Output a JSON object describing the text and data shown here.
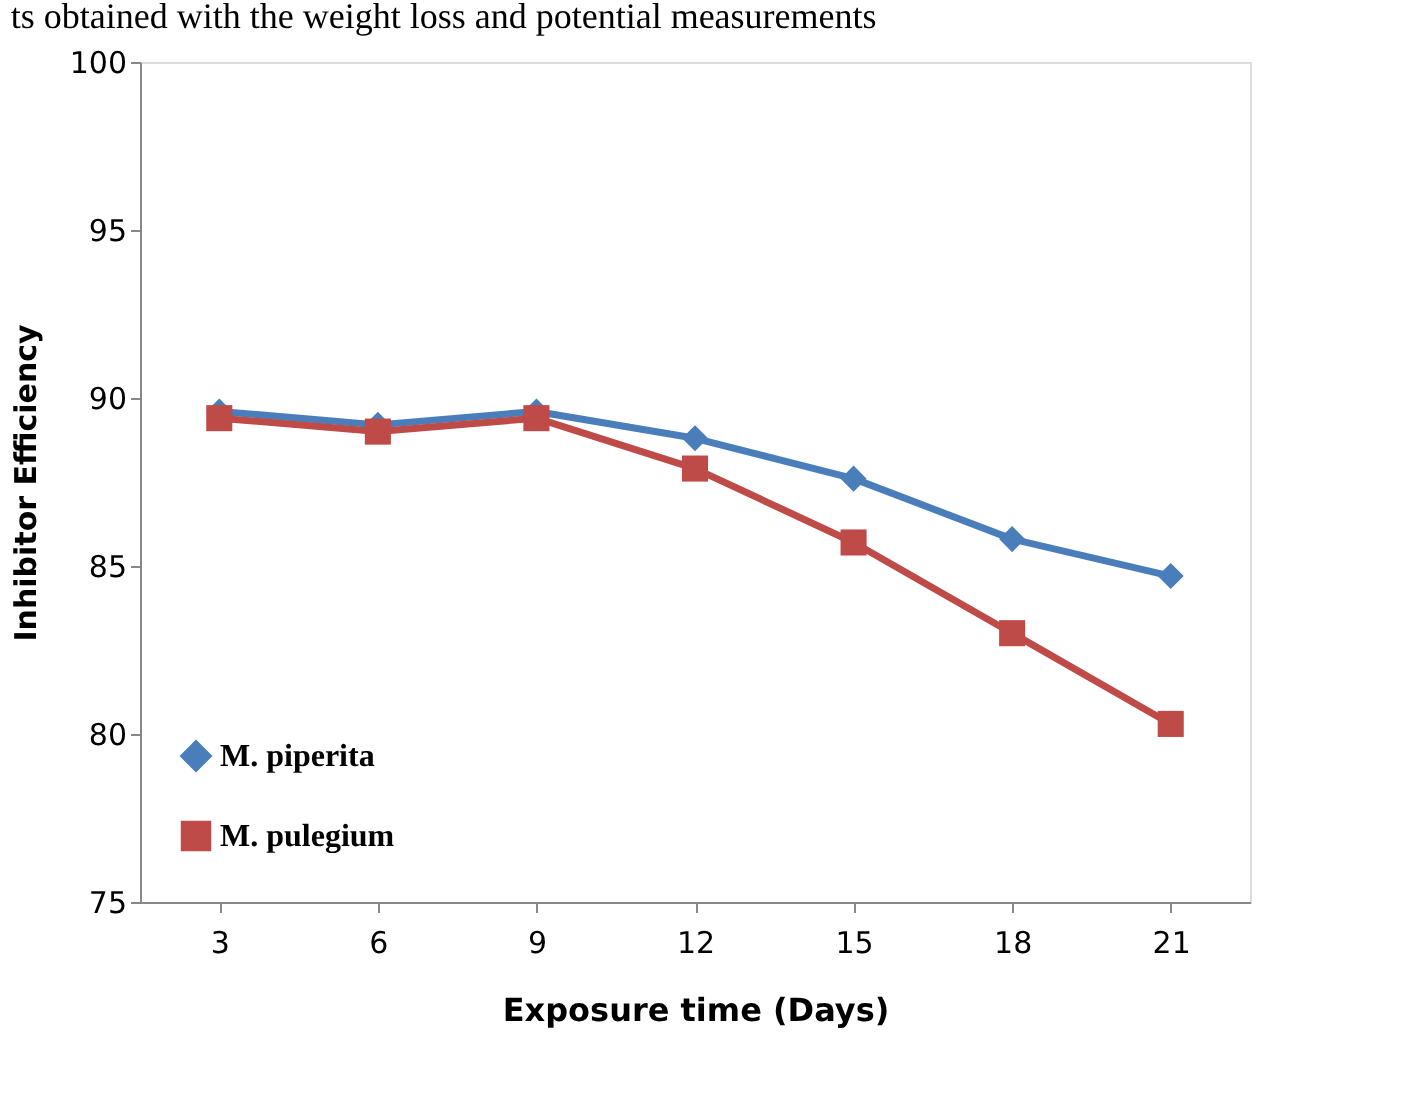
{
  "chart_data": {
    "type": "line",
    "xlabel": "Exposure time (Days)",
    "ylabel": "Inhibitor Efficiency",
    "annotations": [
      "ts obtained with the weight loss and potential measurements"
    ],
    "categories": [
      "3",
      "6",
      "9",
      "12",
      "15",
      "18",
      "21"
    ],
    "series": [
      {
        "name": "M. piperita",
        "color": "#4a7ebb",
        "marker": "diamond",
        "values": [
          89.6,
          89.2,
          89.6,
          88.8,
          87.6,
          85.8,
          84.7
        ]
      },
      {
        "name": "M. pulegium",
        "color": "#be4b48",
        "marker": "square",
        "values": [
          89.4,
          89.0,
          89.4,
          87.9,
          85.7,
          83.0,
          80.3
        ]
      }
    ],
    "ylim": [
      75,
      100
    ],
    "yticks": [
      75,
      80,
      85,
      90,
      95,
      100
    ],
    "grid": false,
    "legend": "bottom left",
    "line_style": "solid"
  }
}
